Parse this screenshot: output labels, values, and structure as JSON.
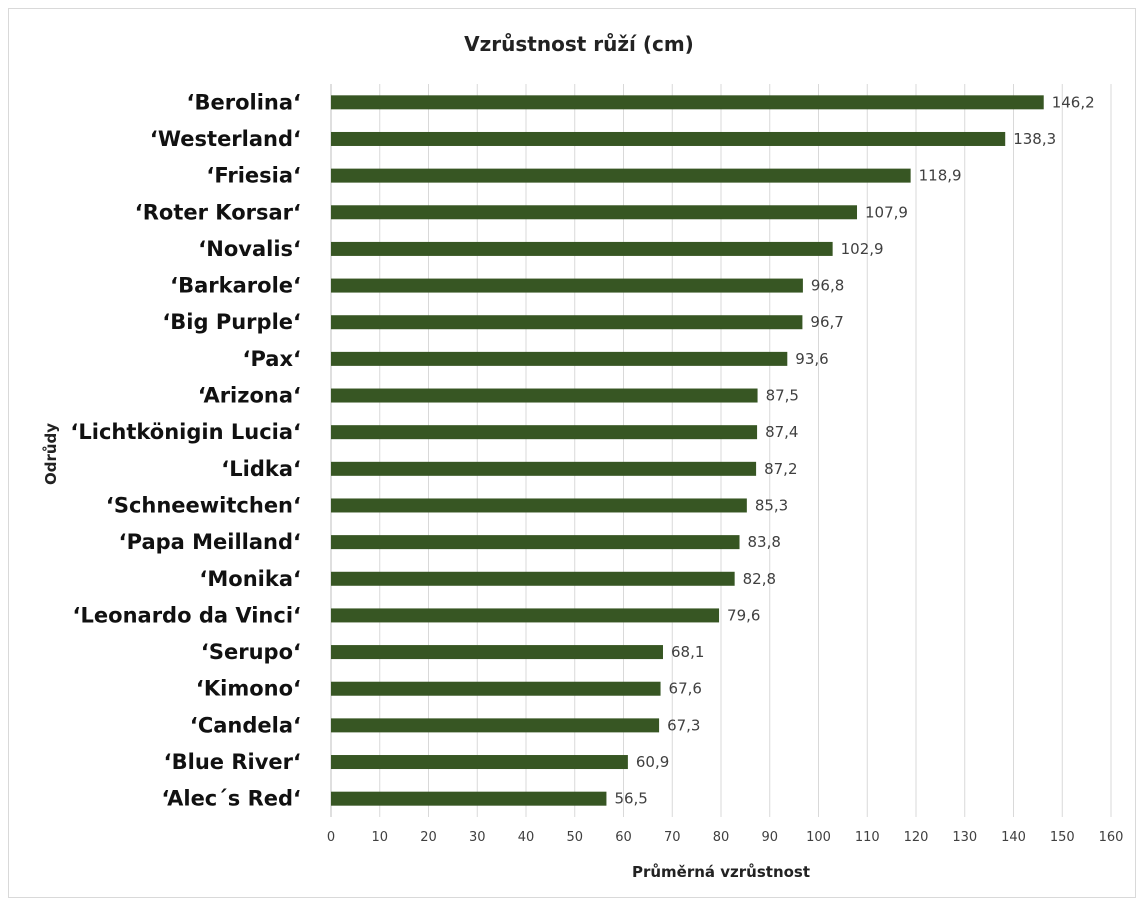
{
  "chart_data": {
    "type": "bar",
    "orientation": "horizontal",
    "title": "Vzrůstnost růží (cm)",
    "xlabel": "Průměrná vzrůstnost",
    "ylabel": "Odrůdy",
    "xlim": [
      0,
      160
    ],
    "xticks": [
      "0",
      "10",
      "20",
      "30",
      "40",
      "50",
      "60",
      "70",
      "80",
      "90",
      "100",
      "110",
      "120",
      "130",
      "140",
      "150",
      "160"
    ],
    "grid": true,
    "bar_color": "#375623",
    "categories": [
      "‘Berolina‘",
      "‘Westerland‘",
      "‘Friesia‘",
      "‘Roter Korsar‘",
      "‘Novalis‘",
      "‘Barkarole‘",
      "‘Big Purple‘",
      "‘Pax‘",
      "‘Arizona‘",
      "‘Lichtkönigin Lucia‘",
      "‘Lidka‘",
      "‘Schneewitchen‘",
      "‘Papa Meilland‘",
      "‘Monika‘",
      "‘Leonardo da Vinci‘",
      "‘Serupo‘",
      "‘Kimono‘",
      "‘Candela‘",
      "‘Blue River‘",
      "‘Alec´s Red‘"
    ],
    "values": [
      146.2,
      138.3,
      118.9,
      107.9,
      102.9,
      96.8,
      96.7,
      93.6,
      87.5,
      87.4,
      87.2,
      85.3,
      83.8,
      82.8,
      79.6,
      68.1,
      67.6,
      67.3,
      60.9,
      56.5
    ],
    "data_labels": [
      "146,2",
      "138,3",
      "118,9",
      "107,9",
      "102,9",
      "96,8",
      "96,7",
      "93,6",
      "87,5",
      "87,4",
      "87,2",
      "85,3",
      "83,8",
      "82,8",
      "79,6",
      "68,1",
      "67,6",
      "67,3",
      "60,9",
      "56,5"
    ]
  }
}
